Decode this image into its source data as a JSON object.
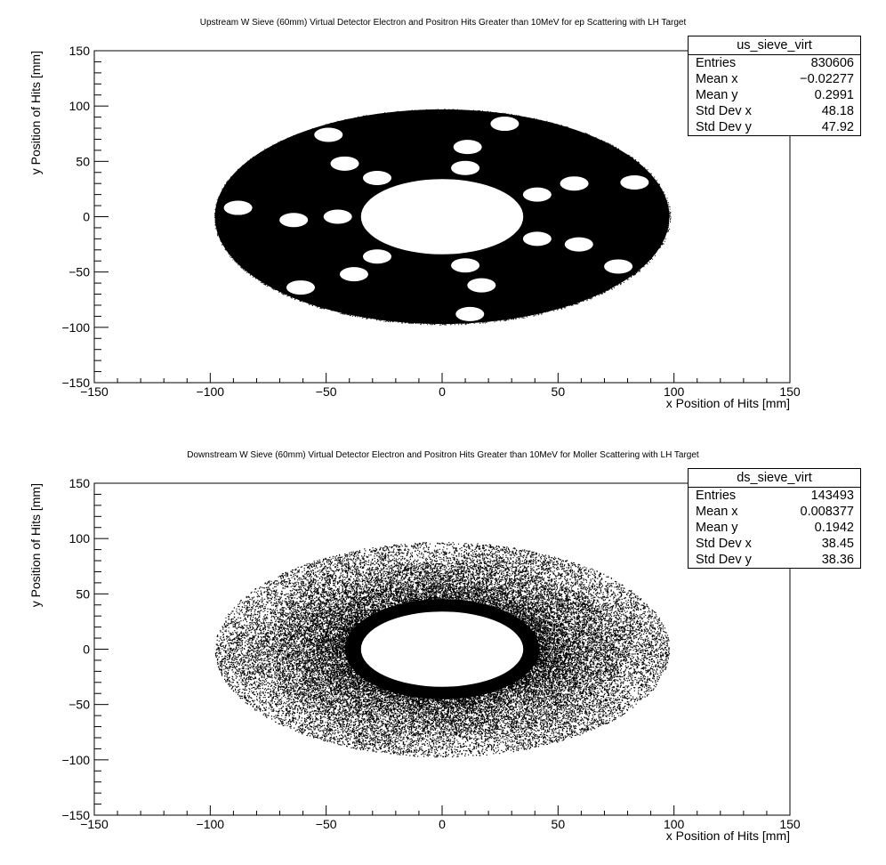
{
  "chart_data": [
    {
      "type": "scatter",
      "title": "Upstream W Sieve (60mm) Virtual Detector Electron and Positron Hits Greater than 10MeV for ep Scattering with LH Target",
      "xlabel": "x Position of Hits [mm]",
      "ylabel": "y Position of Hits [mm]",
      "xlim": [
        -150,
        150
      ],
      "ylim": [
        -150,
        150
      ],
      "x_ticks": [
        -150,
        -100,
        -50,
        0,
        50,
        100,
        150
      ],
      "y_ticks": [
        -150,
        -100,
        -50,
        0,
        50,
        100,
        150
      ],
      "grid": false,
      "distribution": {
        "shape": "annulus",
        "center": [
          0,
          0
        ],
        "outer_radius_x": 98,
        "outer_radius_y": 97,
        "inner_radius_x": 35,
        "inner_radius_y": 34,
        "fill": "solid"
      },
      "sieve_holes": [
        {
          "x": 27,
          "y": 84
        },
        {
          "x": -49,
          "y": 74
        },
        {
          "x": 11,
          "y": 63
        },
        {
          "x": -42,
          "y": 48
        },
        {
          "x": 10,
          "y": 44
        },
        {
          "x": -28,
          "y": 35
        },
        {
          "x": 57,
          "y": 30
        },
        {
          "x": 83,
          "y": 31
        },
        {
          "x": 41,
          "y": 20
        },
        {
          "x": -88,
          "y": 8
        },
        {
          "x": -64,
          "y": -3
        },
        {
          "x": -45,
          "y": 0
        },
        {
          "x": 41,
          "y": -20
        },
        {
          "x": 59,
          "y": -25
        },
        {
          "x": 76,
          "y": -45
        },
        {
          "x": -28,
          "y": -36
        },
        {
          "x": 10,
          "y": -44
        },
        {
          "x": -38,
          "y": -52
        },
        {
          "x": 17,
          "y": -62
        },
        {
          "x": -61,
          "y": -64
        },
        {
          "x": 12,
          "y": -88
        }
      ],
      "stats": {
        "name": "us_sieve_virt",
        "rows": [
          {
            "label": "Entries",
            "value": "830606"
          },
          {
            "label": "Mean x",
            "value": "−0.02277"
          },
          {
            "label": "Mean y",
            "value": "0.2991"
          },
          {
            "label": "Std Dev x",
            "value": "48.18"
          },
          {
            "label": "Std Dev y",
            "value": "47.92"
          }
        ]
      }
    },
    {
      "type": "scatter",
      "title": "Downstream W Sieve (60mm) Virtual Detector Electron and Positron Hits Greater than 10MeV for Moller Scattering with LH Target",
      "xlabel": "x Position of Hits [mm]",
      "ylabel": "y Position of Hits [mm]",
      "xlim": [
        -150,
        150
      ],
      "ylim": [
        -150,
        150
      ],
      "x_ticks": [
        -150,
        -100,
        -50,
        0,
        50,
        100,
        150
      ],
      "y_ticks": [
        -150,
        -100,
        -50,
        0,
        50,
        100,
        150
      ],
      "grid": false,
      "distribution": {
        "shape": "annulus",
        "center": [
          0,
          0
        ],
        "outer_radius_x": 98,
        "outer_radius_y": 97,
        "inner_radius_x": 35,
        "inner_radius_y": 34,
        "fill": "dense near inner edge, sparse toward outer edge"
      },
      "stats": {
        "name": "ds_sieve_virt",
        "rows": [
          {
            "label": "Entries",
            "value": "143493"
          },
          {
            "label": "Mean x",
            "value": "0.008377"
          },
          {
            "label": "Mean y",
            "value": "0.1942"
          },
          {
            "label": "Std Dev x",
            "value": "38.45"
          },
          {
            "label": "Std Dev y",
            "value": "38.36"
          }
        ]
      }
    }
  ]
}
